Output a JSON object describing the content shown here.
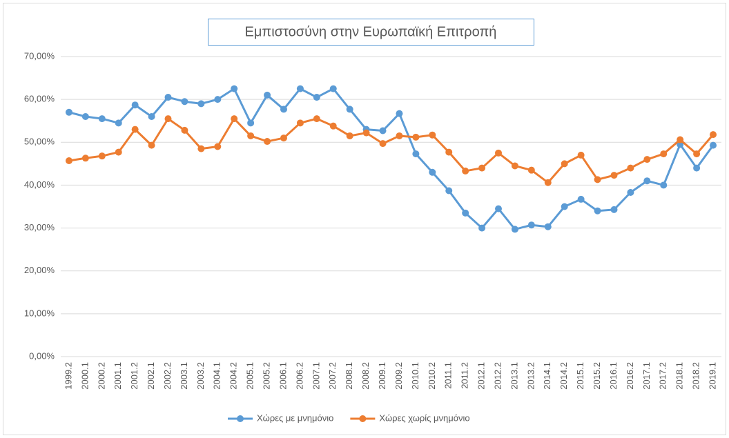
{
  "chart_data": {
    "type": "line",
    "title": "Εμπιστοσύνη στην Ευρωπαϊκή Επιτροπή",
    "categories": [
      "1999.2",
      "2000.1",
      "2000.2",
      "2001.1",
      "2001.2",
      "2002.1",
      "2002.2",
      "2003.1",
      "2003.2",
      "2004.1",
      "2004.2",
      "2005.1",
      "2005.2",
      "2006.1",
      "2006.2",
      "2007.1",
      "2007.2",
      "2008.1",
      "2008.2",
      "2009.1",
      "2009.2",
      "2010.1",
      "2010.2",
      "2011.1",
      "2011.2",
      "2012.1",
      "2012.2",
      "2013.1",
      "2013.2",
      "2014.1",
      "2014.2",
      "2015.1",
      "2015.2",
      "2016.1",
      "2016.2",
      "2017.1",
      "2017.2",
      "2018.1",
      "2018.2",
      "2019.1"
    ],
    "series": [
      {
        "name": "Χώρες με μνημόνιο",
        "color": "#5b9bd5",
        "values": [
          57,
          56,
          55.5,
          54.5,
          58.7,
          56,
          60.5,
          59.5,
          59,
          60,
          62.5,
          54.5,
          61,
          57.7,
          62.5,
          60.5,
          62.5,
          57.7,
          53,
          52.7,
          56.7,
          47.3,
          43,
          38.7,
          33.5,
          30,
          34.5,
          29.7,
          30.7,
          30.3,
          35,
          36.7,
          34,
          34.3,
          38.3,
          41,
          40,
          49.5,
          44,
          49.3
        ]
      },
      {
        "name": "Χώρες χωρίς μνημόνιο",
        "color": "#ed7d31",
        "values": [
          45.7,
          46.3,
          46.8,
          47.7,
          53,
          49.3,
          55.5,
          52.8,
          48.5,
          49,
          55.5,
          51.5,
          50.2,
          51,
          54.5,
          55.5,
          53.8,
          51.5,
          52.2,
          49.7,
          51.5,
          51.2,
          51.7,
          47.7,
          43.3,
          44,
          47.5,
          44.5,
          43.5,
          40.6,
          45,
          47,
          41.3,
          42.3,
          44,
          46,
          47.3,
          50.6,
          47.3,
          51.8
        ]
      }
    ],
    "ylim": [
      0,
      70
    ],
    "yticks": [
      {
        "value": 0,
        "label": "0,00%"
      },
      {
        "value": 10,
        "label": "10,00%"
      },
      {
        "value": 20,
        "label": "20,00%"
      },
      {
        "value": 30,
        "label": "30,00%"
      },
      {
        "value": 40,
        "label": "40,00%"
      },
      {
        "value": 50,
        "label": "50,00%"
      },
      {
        "value": 60,
        "label": "60,00%"
      },
      {
        "value": 70,
        "label": "70,00%"
      }
    ],
    "grid": true,
    "legend": "bottom"
  }
}
